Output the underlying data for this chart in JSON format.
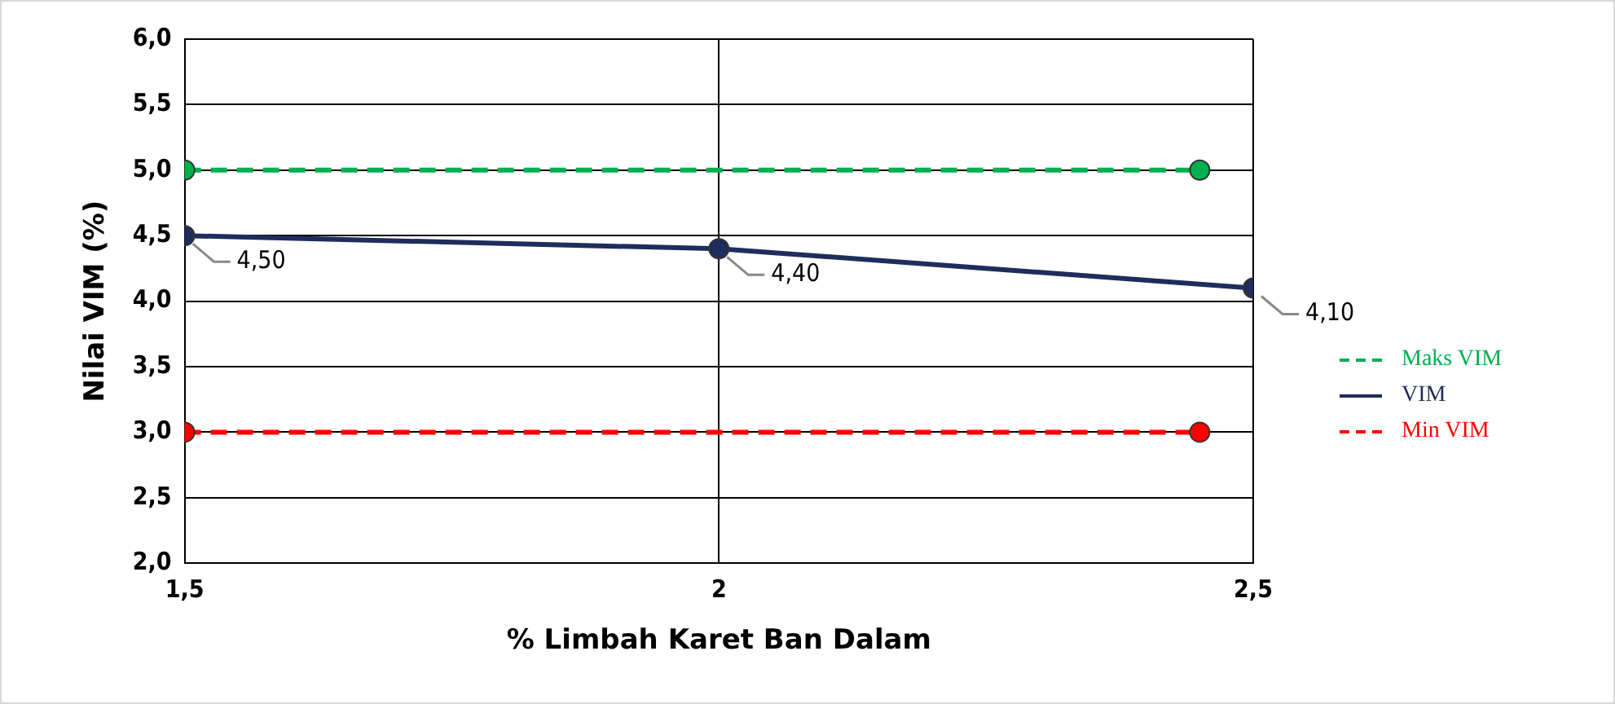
{
  "chart_data": {
    "type": "line",
    "xlabel": "% Limbah Karet Ban Dalam",
    "ylabel": "Nilai VIM (%)",
    "xlim": [
      1.5,
      2.5
    ],
    "xticks": [
      {
        "value": 1.5,
        "label": "1,5"
      },
      2,
      {
        "value": 2.5,
        "label": "2,5"
      }
    ],
    "ylim": [
      2,
      6
    ],
    "yticks": [
      {
        "value": 2,
        "label": "2,0"
      },
      {
        "value": 2.5,
        "label": "2,5"
      },
      {
        "value": 3,
        "label": "3,0"
      },
      {
        "value": 3.5,
        "label": "3,5"
      },
      {
        "value": 4,
        "label": "4,0"
      },
      {
        "value": 4.5,
        "label": "4,5"
      },
      {
        "value": 5,
        "label": "5,0"
      },
      {
        "value": 5.5,
        "label": "5,5"
      },
      {
        "value": 6,
        "label": "6,0"
      }
    ],
    "grid": true,
    "legend": "right",
    "marker": "circle",
    "series": [
      {
        "name": "Maks VIM",
        "color": "#00b050",
        "x": [
          1.5,
          2.45
        ],
        "values": [
          5,
          5
        ],
        "line_style": "dashed"
      },
      {
        "name": "VIM",
        "color": "#1f2d5c",
        "x": [
          1.5,
          2,
          2.5
        ],
        "values": [
          4.5,
          4.4,
          4.1
        ],
        "line_style": "solid",
        "value_labels": [
          "4,50",
          "4,40",
          "4,10"
        ]
      },
      {
        "name": "Min VIM",
        "color": "#ff0000",
        "x": [
          1.5,
          2.45
        ],
        "values": [
          3,
          3
        ],
        "line_style": "dashed"
      }
    ]
  }
}
